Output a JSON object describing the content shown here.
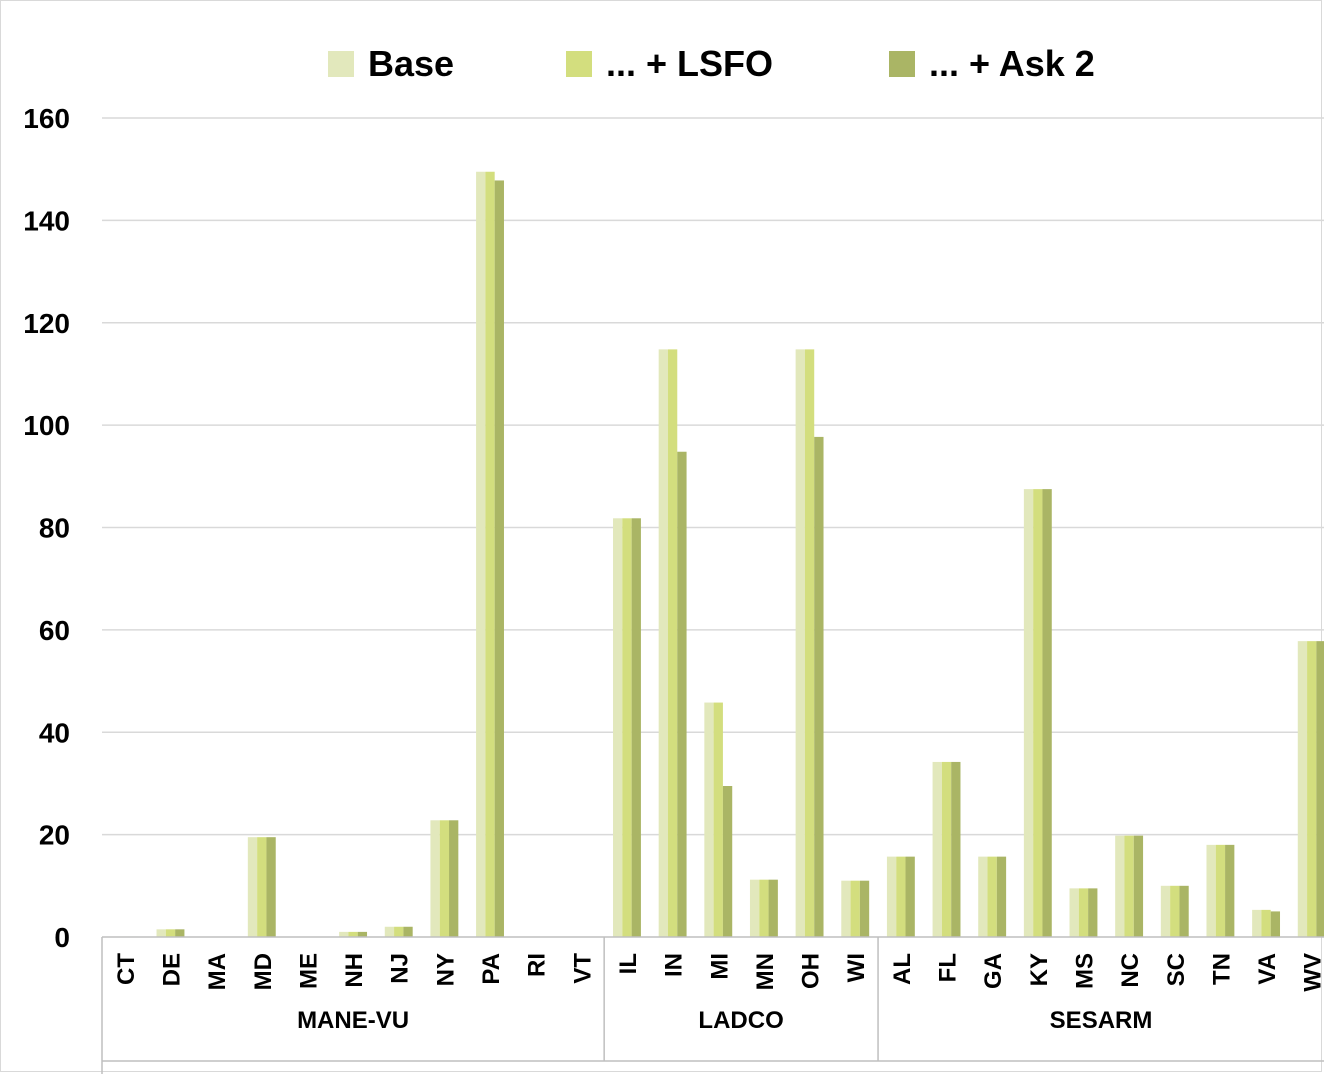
{
  "chart_data": {
    "type": "bar",
    "title": "",
    "xlabel": "",
    "ylabel": "",
    "ylim": [
      0,
      160
    ],
    "yticks": [
      0,
      20,
      40,
      60,
      80,
      100,
      120,
      140,
      160
    ],
    "grid": "horizontal",
    "legend_position": "top",
    "groups": [
      {
        "name": "MANE-VU",
        "categories": [
          "CT",
          "DE",
          "MA",
          "MD",
          "ME",
          "NH",
          "NJ",
          "NY",
          "PA",
          "RI",
          "VT"
        ]
      },
      {
        "name": "LADCO",
        "categories": [
          "IL",
          "IN",
          "MI",
          "MN",
          "OH",
          "WI"
        ]
      },
      {
        "name": "SESARM",
        "categories": [
          "AL",
          "FL",
          "GA",
          "KY",
          "MS",
          "NC",
          "SC",
          "TN",
          "VA",
          "WV"
        ]
      }
    ],
    "categories": [
      "CT",
      "DE",
      "MA",
      "MD",
      "ME",
      "NH",
      "NJ",
      "NY",
      "PA",
      "RI",
      "VT",
      "IL",
      "IN",
      "MI",
      "MN",
      "OH",
      "WI",
      "AL",
      "FL",
      "GA",
      "KY",
      "MS",
      "NC",
      "SC",
      "TN",
      "VA",
      "WV"
    ],
    "series": [
      {
        "name": "Base",
        "color": "#e2e8bc",
        "values": [
          0.1,
          1.5,
          0,
          19.5,
          0,
          1,
          2,
          22.8,
          149.5,
          0,
          0,
          81.8,
          114.8,
          45.8,
          11.2,
          114.8,
          11,
          15.7,
          34.2,
          15.7,
          87.5,
          9.5,
          19.8,
          10,
          18,
          5.3,
          57.8
        ]
      },
      {
        "name": "... + LSFO",
        "color": "#d3de7e",
        "values": [
          0.1,
          1.5,
          0,
          19.5,
          0,
          1,
          2,
          22.8,
          149.5,
          0,
          0,
          81.8,
          114.8,
          45.8,
          11.2,
          114.8,
          11,
          15.7,
          34.2,
          15.7,
          87.5,
          9.5,
          19.8,
          10,
          18,
          5.3,
          57.8
        ]
      },
      {
        "name": "... + Ask 2",
        "color": "#aab565",
        "values": [
          0.1,
          1.5,
          0,
          19.5,
          0,
          1,
          2,
          22.8,
          147.8,
          0,
          0,
          81.8,
          94.8,
          29.5,
          11.2,
          97.7,
          11,
          15.7,
          34.2,
          15.7,
          87.5,
          9.5,
          19.8,
          10,
          18,
          5,
          57.8
        ]
      }
    ]
  }
}
